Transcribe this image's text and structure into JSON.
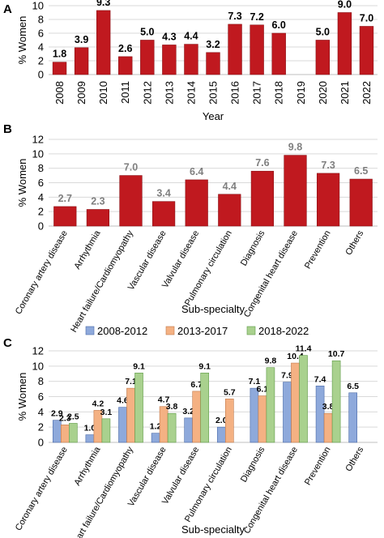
{
  "colors": {
    "red": "#C0191F",
    "blue": "#8EA9DB",
    "orange": "#F4B183",
    "green": "#A9D18E",
    "grid": "#d9d9d9",
    "gray_label": "#7f7f7f"
  },
  "chart_data": [
    {
      "panel": "A",
      "type": "bar",
      "ylabel": "% Women",
      "xlabel": "Year",
      "ylim": [
        0,
        10
      ],
      "yticks": [
        "0",
        "2",
        "4",
        "6",
        "8",
        "10"
      ],
      "categories": [
        "2008",
        "2009",
        "2010",
        "2011",
        "2012",
        "2013",
        "2014",
        "2015",
        "2016",
        "2017",
        "2018",
        "2019",
        "2020",
        "2021",
        "2022"
      ],
      "values": [
        1.8,
        3.9,
        9.3,
        2.6,
        5.0,
        4.3,
        4.4,
        3.2,
        7.3,
        7.2,
        6.0,
        null,
        5.0,
        9.0,
        7.0
      ],
      "data_labels": [
        "1.8",
        "3.9",
        "9.3",
        "2.6",
        "5.0",
        "4.3",
        "4.4",
        "3.2",
        "7.3",
        "7.2",
        "6.0",
        "",
        "5.0",
        "9.0",
        "7.0"
      ],
      "grid": true
    },
    {
      "panel": "B",
      "type": "bar",
      "ylabel": "% Women",
      "xlabel": "Sub-specialty",
      "ylim": [
        0,
        12
      ],
      "yticks": [
        "0",
        "2",
        "4",
        "6",
        "8",
        "10",
        "12"
      ],
      "categories": [
        "Coronary artery disease",
        "Arrhythmia",
        "Heart failure/Cardiomyopathy",
        "Vascular disease",
        "Valvular disease",
        "Pulmonary circulation",
        "Diagnosis",
        "Congenital heart disease",
        "Prevention",
        "Others"
      ],
      "values": [
        2.7,
        2.3,
        7.0,
        3.4,
        6.4,
        4.4,
        7.6,
        9.8,
        7.3,
        6.5
      ],
      "data_labels": [
        "2.7",
        "2.3",
        "7.0",
        "3.4",
        "6.4",
        "4.4",
        "7.6",
        "9.8",
        "7.3",
        "6.5"
      ],
      "grid": true
    },
    {
      "panel": "C",
      "type": "bar",
      "ylabel": "% Women",
      "xlabel": "Sub-specialty",
      "ylim": [
        0,
        12
      ],
      "yticks": [
        "0",
        "2",
        "4",
        "6",
        "8",
        "10",
        "12"
      ],
      "legend_position": "top",
      "categories": [
        "Coronary artery disease",
        "Arrhythmia",
        "Heart failure/Cardiomyopathy",
        "Vascular disease",
        "Valvular disease",
        "Pulmonary circulation",
        "Diagnosis",
        "Congenital heart disease",
        "Prevention",
        "Others"
      ],
      "series": [
        {
          "name": "2008-2012",
          "values": [
            2.9,
            1.0,
            4.6,
            1.2,
            3.2,
            2.0,
            7.1,
            7.9,
            7.4,
            6.5
          ],
          "data_labels": [
            "2.9",
            "1.0",
            "4.6",
            "1.2",
            "3.2",
            "2.0",
            "7.1",
            "7.9",
            "7.4",
            "6.5"
          ]
        },
        {
          "name": "2013-2017",
          "values": [
            2.3,
            4.2,
            7.1,
            4.7,
            6.7,
            5.7,
            6.1,
            10.4,
            3.8,
            null
          ],
          "data_labels": [
            "2.3",
            "4.2",
            "7.1",
            "4.7",
            "6.7",
            "5.7",
            "6.1",
            "10.4",
            "3.8",
            ""
          ]
        },
        {
          "name": "2018-2022",
          "values": [
            2.5,
            3.1,
            9.1,
            3.8,
            9.1,
            null,
            9.8,
            11.4,
            10.7,
            null
          ],
          "data_labels": [
            "2.5",
            "3.1",
            "9.1",
            "3.8",
            "9.1",
            "",
            "9.8",
            "11.4",
            "10.7",
            ""
          ]
        }
      ],
      "grid": true
    }
  ]
}
